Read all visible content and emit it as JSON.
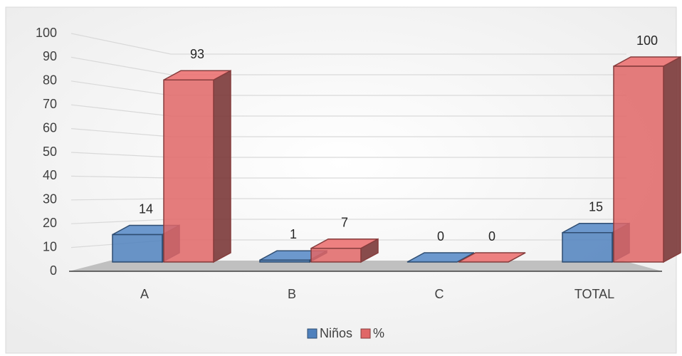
{
  "chart_data": {
    "type": "bar3d",
    "categories": [
      "A",
      "B",
      "C",
      "TOTAL"
    ],
    "series": [
      {
        "name": "Niños",
        "color": "#4f81bd",
        "values": [
          14,
          1,
          0,
          15
        ]
      },
      {
        "name": "%",
        "color": "#e06666",
        "values": [
          93,
          7,
          0,
          100
        ]
      }
    ],
    "ylim": [
      0,
      100
    ],
    "yticks": [
      0,
      10,
      20,
      30,
      40,
      50,
      60,
      70,
      80,
      90,
      100
    ],
    "grid": true,
    "legend": "bottom"
  }
}
